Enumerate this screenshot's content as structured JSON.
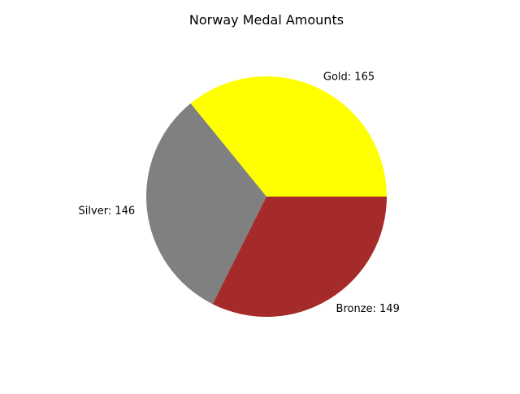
{
  "chart_data": {
    "type": "pie",
    "title": "Norway Medal Amounts",
    "slices": [
      {
        "label": "Gold",
        "value": 165,
        "color": "#ffff00",
        "text": "Gold: 165"
      },
      {
        "label": "Silver",
        "value": 146,
        "color": "#808080",
        "text": "Silver: 146"
      },
      {
        "label": "Bronze",
        "value": 149,
        "color": "#a52a2a",
        "text": "Bronze: 149"
      }
    ],
    "start_angle_deg": 0,
    "direction": "counterclockwise",
    "legend": "none"
  }
}
